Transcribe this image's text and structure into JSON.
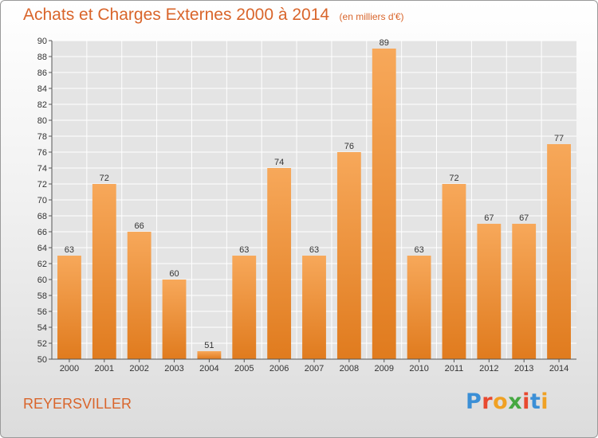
{
  "header": {
    "title": "Achats et Charges Externes 2000 à 2014",
    "unit": "(en milliers d'€)"
  },
  "footer": {
    "commune": "REYERSVILLER",
    "logo": {
      "text": "Proxiti",
      "letter_colors": [
        "#3b8fd6",
        "#e8492f",
        "#f0a123",
        "#46a842",
        "#e8492f",
        "#3b8fd6",
        "#f0a123"
      ]
    }
  },
  "colors": {
    "bar_top": "#f7a85a",
    "bar_bottom": "#e07b1e",
    "plot_background": "#e4e4e4",
    "grid": "#ffffff",
    "accent_text": "#d9652b"
  },
  "chart_data": {
    "type": "bar",
    "categories": [
      "2000",
      "2001",
      "2002",
      "2003",
      "2004",
      "2005",
      "2006",
      "2007",
      "2008",
      "2009",
      "2010",
      "2011",
      "2012",
      "2013",
      "2014"
    ],
    "values": [
      63,
      72,
      66,
      60,
      51,
      63,
      74,
      63,
      76,
      89,
      63,
      72,
      67,
      67,
      77
    ],
    "title": "Achats et Charges Externes 2000 à 2014",
    "subtitle": "(en milliers d'€)",
    "ylim": [
      50,
      90
    ],
    "yticks": [
      50,
      52,
      54,
      56,
      58,
      60,
      62,
      64,
      66,
      68,
      70,
      72,
      74,
      76,
      78,
      80,
      82,
      84,
      86,
      88,
      90
    ],
    "grid": true,
    "legend": "none"
  }
}
